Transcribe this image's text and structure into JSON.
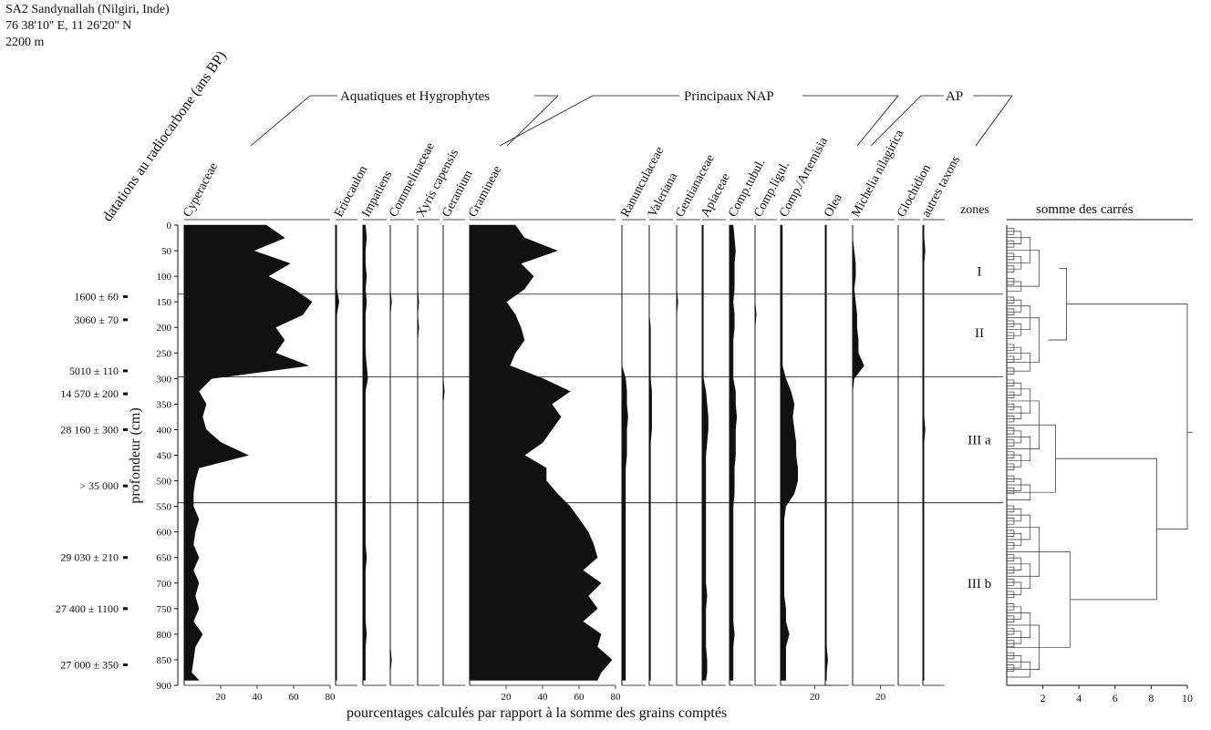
{
  "header": {
    "site_name": "SA2 Sandynallah (Nilgiri, Inde)",
    "coordinates": "76 38'10'' E, 11 26'20'' N",
    "altitude": "2200 m"
  },
  "footer": {
    "caption": "pourcentages calculés par rapport à la somme des grains comptés"
  },
  "chart_data": {
    "type": "area",
    "ylabel": "profondeur (cm)",
    "dates_label": "datations au radiocarbone (ans BP)",
    "depth_range": [
      0,
      900
    ],
    "depth_ticks": [
      0,
      50,
      100,
      150,
      200,
      250,
      300,
      350,
      400,
      450,
      500,
      550,
      600,
      650,
      700,
      750,
      800,
      850,
      900
    ],
    "groups": [
      {
        "label": "Aquatiques et Hygrophytes"
      },
      {
        "label": "Principaux NAP"
      },
      {
        "label": "AP"
      }
    ],
    "radiocarbon_dates": [
      {
        "label": "1600 ± 60",
        "depth": 140
      },
      {
        "label": "3060 ± 70",
        "depth": 185
      },
      {
        "label": "5010 ± 110",
        "depth": 285
      },
      {
        "label": "14 570 ± 200",
        "depth": 330
      },
      {
        "label": "28 160 ± 300",
        "depth": 400
      },
      {
        "label": "> 35 000",
        "depth": 510
      },
      {
        "label": "29 030 ± 210",
        "depth": 650
      },
      {
        "label": "27 400 ± 1100",
        "depth": 750
      },
      {
        "label": "27 000 ± 350",
        "depth": 860
      }
    ],
    "zone_boundaries": [
      135,
      297,
      543
    ],
    "zones_title": "zones",
    "zones": [
      {
        "label": "I",
        "depth": 90
      },
      {
        "label": "II",
        "depth": 210
      },
      {
        "label": "III a",
        "depth": 420
      },
      {
        "label": "III b",
        "depth": 700
      }
    ],
    "taxa_depths": [
      0,
      25,
      50,
      75,
      100,
      125,
      150,
      175,
      200,
      225,
      250,
      275,
      300,
      325,
      350,
      375,
      400,
      425,
      450,
      475,
      500,
      525,
      550,
      575,
      600,
      625,
      650,
      675,
      700,
      725,
      750,
      775,
      800,
      825,
      850,
      875,
      890
    ],
    "taxa": [
      {
        "name": "Cyperaceae",
        "scale_ticks": [
          20,
          40,
          60,
          80
        ],
        "max": 80,
        "values": [
          45,
          55,
          38,
          58,
          46,
          60,
          70,
          65,
          50,
          55,
          50,
          68,
          15,
          8,
          12,
          10,
          12,
          20,
          35,
          8,
          6,
          5,
          5,
          8,
          6,
          5,
          8,
          5,
          8,
          6,
          8,
          5,
          10,
          6,
          5,
          4,
          8
        ]
      },
      {
        "name": "Eriocaulon",
        "values": [
          1,
          1,
          1,
          1,
          1,
          1,
          3,
          1,
          1,
          1,
          1,
          1,
          1,
          1,
          1,
          1,
          1,
          1,
          1,
          1,
          1,
          1,
          1,
          1,
          1,
          1,
          1,
          1,
          1,
          1,
          1,
          1,
          1,
          1,
          1,
          1,
          1
        ]
      },
      {
        "name": "Impatiens",
        "values": [
          2,
          3,
          2,
          2,
          3,
          2,
          3,
          2,
          2,
          2,
          2,
          3,
          4,
          2,
          2,
          2,
          2,
          2,
          2,
          2,
          2,
          2,
          2,
          2,
          2,
          2,
          3,
          2,
          2,
          2,
          2,
          2,
          3,
          2,
          2,
          2,
          2
        ]
      },
      {
        "name": "Commelinaceae",
        "values": [
          0,
          0,
          0,
          0,
          0,
          0,
          1,
          0,
          0,
          0,
          0,
          0,
          0,
          0,
          0,
          0,
          0,
          0,
          0,
          0,
          0,
          0,
          0,
          0,
          0,
          0,
          0,
          0,
          0,
          0,
          0,
          0,
          0,
          0,
          1,
          0,
          0
        ]
      },
      {
        "name": "Xyris capensis",
        "values": [
          0,
          0,
          0,
          0,
          0,
          0,
          1,
          0,
          1,
          0,
          0,
          0,
          0,
          0,
          0,
          0,
          0,
          0,
          0,
          0,
          0,
          0,
          0,
          0,
          0,
          0,
          0,
          0,
          0,
          0,
          0,
          0,
          0,
          0,
          0,
          0,
          0
        ]
      },
      {
        "name": "Geranium",
        "values": [
          0,
          0,
          0,
          0,
          0,
          0,
          0,
          0,
          0,
          0,
          0,
          0,
          0,
          1,
          0,
          0,
          0,
          0,
          0,
          0,
          0,
          0,
          0,
          0,
          0,
          0,
          0,
          0,
          0,
          0,
          0,
          0,
          0,
          0,
          0,
          0,
          0
        ]
      },
      {
        "name": "Gramineae",
        "scale_ticks": [
          20,
          40,
          60,
          80
        ],
        "max": 80,
        "values": [
          25,
          30,
          48,
          28,
          35,
          30,
          20,
          25,
          28,
          30,
          25,
          22,
          40,
          55,
          45,
          50,
          45,
          40,
          30,
          42,
          42,
          48,
          55,
          60,
          65,
          68,
          70,
          62,
          72,
          65,
          70,
          62,
          72,
          70,
          78,
          72,
          70
        ]
      },
      {
        "name": "Ranunculaceae",
        "values": [
          0,
          0,
          0,
          0,
          0,
          0,
          0,
          0,
          0,
          0,
          0,
          0,
          3,
          4,
          4,
          5,
          4,
          4,
          4,
          3,
          3,
          3,
          3,
          3,
          3,
          3,
          3,
          3,
          3,
          3,
          3,
          3,
          3,
          3,
          3,
          3,
          3
        ]
      },
      {
        "name": "Valeriana",
        "values": [
          0,
          0,
          0,
          0,
          0,
          0,
          0,
          0,
          1,
          1,
          1,
          1,
          1,
          2,
          2,
          2,
          2,
          1,
          1,
          1,
          1,
          1,
          1,
          1,
          1,
          1,
          1,
          1,
          1,
          1,
          1,
          1,
          1,
          1,
          1,
          1,
          1
        ]
      },
      {
        "name": "Gentianaceae",
        "values": [
          0,
          0,
          0,
          0,
          0,
          0,
          1,
          0,
          0,
          0,
          0,
          0,
          0,
          0,
          0,
          0,
          0,
          0,
          0,
          0,
          0,
          0,
          0,
          0,
          0,
          0,
          0,
          0,
          0,
          0,
          0,
          0,
          0,
          0,
          0,
          0,
          0
        ]
      },
      {
        "name": "Apiaceae",
        "values": [
          1,
          1,
          1,
          1,
          1,
          1,
          1,
          1,
          1,
          1,
          1,
          1,
          1,
          3,
          4,
          5,
          5,
          4,
          3,
          3,
          3,
          3,
          3,
          3,
          3,
          3,
          3,
          3,
          3,
          4,
          3,
          3,
          3,
          3,
          4,
          4,
          3
        ]
      },
      {
        "name": "Comp.tubul.",
        "values": [
          3,
          4,
          5,
          4,
          4,
          4,
          3,
          4,
          4,
          3,
          3,
          3,
          3,
          5,
          5,
          6,
          5,
          5,
          5,
          4,
          4,
          4,
          3,
          3,
          3,
          3,
          3,
          3,
          3,
          3,
          3,
          3,
          4,
          3,
          3,
          3,
          3
        ]
      },
      {
        "name": "Comp.ligul.",
        "values": [
          0,
          0,
          0,
          0,
          0,
          0,
          0,
          1,
          0,
          0,
          0,
          0,
          0,
          0,
          0,
          0,
          0,
          0,
          0,
          0,
          0,
          0,
          0,
          0,
          0,
          0,
          0,
          0,
          0,
          0,
          0,
          0,
          0,
          0,
          0,
          0,
          0
        ]
      },
      {
        "name": "Comp./Artemisia",
        "scale_ticks": [
          20
        ],
        "max": 30,
        "values": [
          1,
          1,
          1,
          1,
          1,
          1,
          1,
          1,
          1,
          1,
          1,
          1,
          3,
          6,
          8,
          7,
          8,
          9,
          9,
          10,
          10,
          8,
          3,
          2,
          2,
          2,
          2,
          2,
          2,
          2,
          3,
          3,
          5,
          3,
          3,
          3,
          3
        ]
      },
      {
        "name": "Olea",
        "values": [
          1,
          1,
          1,
          1,
          1,
          1,
          1,
          1,
          1,
          1,
          1,
          1,
          1,
          1,
          1,
          1,
          1,
          1,
          1,
          1,
          1,
          1,
          1,
          1,
          1,
          1,
          1,
          1,
          1,
          1,
          1,
          1,
          1,
          1,
          2,
          1,
          1
        ]
      },
      {
        "name": "Michelia nilagirica",
        "scale_ticks": [
          20
        ],
        "max": 30,
        "values": [
          0,
          0,
          1,
          2,
          2,
          1,
          2,
          3,
          3,
          4,
          4,
          8,
          1,
          0,
          0,
          0,
          0,
          0,
          0,
          0,
          0,
          0,
          0,
          0,
          0,
          0,
          0,
          0,
          0,
          0,
          0,
          0,
          0,
          0,
          0,
          0,
          0
        ]
      },
      {
        "name": "Glochidion",
        "values": [
          0,
          0,
          0,
          0,
          0,
          0,
          0,
          0,
          0,
          0,
          0,
          0,
          0,
          0,
          0,
          0,
          0,
          0,
          0,
          0,
          0,
          0,
          0,
          0,
          0,
          0,
          0,
          0,
          0,
          0,
          0,
          0,
          0,
          0,
          0,
          0,
          0
        ]
      },
      {
        "name": "autres taxons",
        "values": [
          1,
          1,
          2,
          1,
          1,
          1,
          1,
          1,
          1,
          1,
          1,
          1,
          1,
          1,
          1,
          1,
          2,
          1,
          1,
          1,
          1,
          1,
          1,
          1,
          1,
          1,
          1,
          1,
          1,
          1,
          1,
          1,
          1,
          1,
          1,
          1,
          1
        ]
      }
    ],
    "dendrogram": {
      "title": "somme des carrés",
      "xlim": [
        0,
        10
      ],
      "ticks": [
        2,
        4,
        6,
        8,
        10
      ],
      "clusters": [
        {
          "from": 0,
          "to": 135,
          "height": 2.9
        },
        {
          "from": 135,
          "to": 297,
          "height": 2.3
        },
        {
          "from": 297,
          "to": 543,
          "height": 2.7
        },
        {
          "from": 543,
          "to": 890,
          "height": 3.5
        }
      ],
      "top_merges": [
        {
          "a": 0,
          "b": 1,
          "height": 3.3
        },
        {
          "a": 2,
          "b": 3,
          "height": 8.3
        },
        {
          "a": "ab",
          "b": "cd",
          "height": 10
        }
      ]
    }
  }
}
